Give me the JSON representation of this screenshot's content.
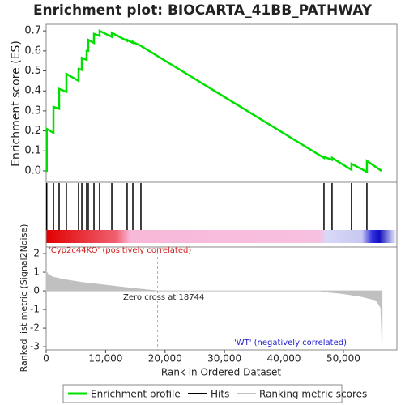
{
  "chart_data": {
    "type": "gsea",
    "title": "Enrichment plot: BIOCARTA_41BB_PATHWAY",
    "xlabel": "Rank in Ordered Dataset",
    "xlim": [
      0,
      59000
    ],
    "xticks": [
      0,
      {
        "value": 10000,
        "label": "10,000"
      },
      {
        "value": 20000,
        "label": "20,000"
      },
      {
        "value": 30000,
        "label": "30,000"
      },
      {
        "value": 40000,
        "label": "40,000"
      },
      {
        "value": 50000,
        "label": "50,000"
      }
    ],
    "es": {
      "name": "Enrichment profile",
      "ylabel": "Enrichment score (ES)",
      "color": "#00e000",
      "ylim": [
        -0.057,
        0.733
      ],
      "yticks": [
        {
          "value": 0,
          "label": "0.0"
        },
        0.1,
        0.2,
        0.3,
        0.4,
        0.5,
        0.6,
        0.7
      ],
      "x": [
        0,
        100,
        100,
        1230,
        1230,
        2180,
        2180,
        3400,
        3400,
        5450,
        5450,
        6000,
        6000,
        6810,
        6810,
        7080,
        7080,
        8040,
        8040,
        8990,
        8990,
        11040,
        11040,
        13620,
        13620,
        14580,
        14580,
        15940,
        15940,
        46730,
        46730,
        48090,
        48090,
        51360,
        51360,
        53950,
        53950,
        56400
      ],
      "values": [
        0,
        0,
        0.21,
        0.19,
        0.32,
        0.31,
        0.41,
        0.395,
        0.485,
        0.45,
        0.51,
        0.505,
        0.565,
        0.555,
        0.6,
        0.6,
        0.655,
        0.64,
        0.685,
        0.675,
        0.7,
        0.67,
        0.69,
        0.65,
        0.655,
        0.64,
        0.645,
        0.625,
        0.625,
        0.065,
        0.07,
        0.055,
        0.065,
        0.005,
        0.035,
        -0.005,
        0.05,
        0
      ]
    },
    "hits": {
      "name": "Hits",
      "color": "#000000",
      "x": [
        100,
        1230,
        2180,
        3400,
        5450,
        6000,
        6810,
        7080,
        8040,
        8990,
        11040,
        13620,
        14580,
        15940,
        46730,
        48090,
        51360,
        53950
      ]
    },
    "metric": {
      "name": "Ranking metric scores",
      "ylabel": "Ranked list metric (Signal2Noise)",
      "color": "#c0c0c0",
      "ylim": [
        -3.17,
        2.35
      ],
      "yticks": [
        -3,
        -2,
        -1,
        0,
        1,
        2
      ],
      "x": [
        0,
        300,
        1000,
        3000,
        6000,
        10000,
        14000,
        17000,
        18744,
        46000,
        47000,
        50000,
        53000,
        55500,
        56300,
        56500
      ],
      "values": [
        1.05,
        0.9,
        0.75,
        0.6,
        0.45,
        0.3,
        0.15,
        0.05,
        0,
        0,
        -0.05,
        -0.15,
        -0.3,
        -0.5,
        -0.9,
        -2.8
      ],
      "zero_cross": 18744,
      "annotation": "Zero cross at 18744",
      "pos_label": "'Cyp2c44KO' (positively correlated)",
      "neg_label": "'WT' (negatively correlated)"
    }
  }
}
